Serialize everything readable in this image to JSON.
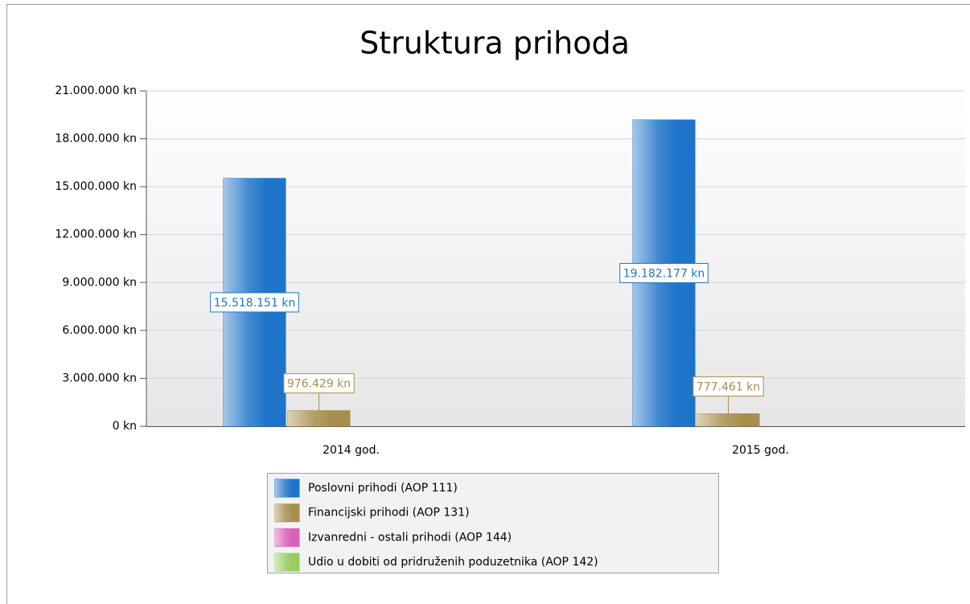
{
  "chart_data": {
    "type": "bar",
    "title": "Struktura prihoda",
    "categories": [
      "2014 god.",
      "2015 god."
    ],
    "series": [
      {
        "name": "Poslovni prihodi (AOP 111)",
        "color": "#1e74c8",
        "values": [
          15518151,
          19182177
        ],
        "value_labels": [
          "15.518.151 kn",
          "19.182.177 kn"
        ]
      },
      {
        "name": "Financijski prihodi (AOP 131)",
        "color": "#a88e4e",
        "values": [
          976429,
          777461
        ],
        "value_labels": [
          "976.429 kn",
          "777.461 kn"
        ]
      },
      {
        "name": "Izvanredni - ostali prihodi (AOP 144)",
        "color": "#d860b8",
        "values": [
          0,
          0
        ]
      },
      {
        "name": "Udio u dobiti od pridruženih poduzetnika (AOP 142)",
        "color": "#98cc60",
        "values": [
          0,
          0
        ]
      }
    ],
    "ylim": [
      0,
      21000000
    ],
    "yticks": [
      {
        "value": 0,
        "label": "0 kn"
      },
      {
        "value": 3000000,
        "label": "3.000.000 kn"
      },
      {
        "value": 6000000,
        "label": "6.000.000 kn"
      },
      {
        "value": 9000000,
        "label": "9.000.000 kn"
      },
      {
        "value": 12000000,
        "label": "12.000.000 kn"
      },
      {
        "value": 15000000,
        "label": "15.000.000 kn"
      },
      {
        "value": 18000000,
        "label": "18.000.000 kn"
      },
      {
        "value": 21000000,
        "label": "21.000.000 kn"
      }
    ],
    "grid": true
  }
}
